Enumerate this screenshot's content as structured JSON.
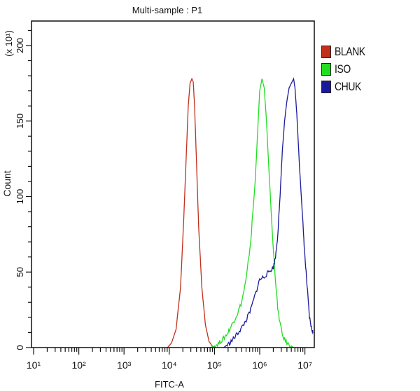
{
  "chart_data": {
    "type": "line",
    "title": "Multi-sample : P1",
    "xlabel": "FITC-A",
    "ylabel": "Count",
    "y_multiplier_label": "(x 10¹)",
    "x_scale": "log",
    "xlim_log10": [
      1,
      7.2
    ],
    "ylim": [
      0,
      215
    ],
    "x_tick_labels": [
      "10¹",
      "10²",
      "10³",
      "10⁴",
      "10⁵",
      "10⁶",
      "10⁷"
    ],
    "x_tick_exponents": [
      1,
      2,
      3,
      4,
      5,
      6,
      7
    ],
    "y_ticks": [
      0,
      50,
      100,
      150,
      200
    ],
    "grid": false,
    "legend_position": "right-outside-top",
    "series": [
      {
        "name": "BLANK",
        "color": "#c0301a",
        "log10_x": [
          3.96,
          4.05,
          4.15,
          4.25,
          4.32,
          4.38,
          4.42,
          4.46,
          4.5,
          4.53,
          4.56,
          4.6,
          4.65,
          4.72,
          4.8,
          4.88,
          4.95,
          5.0
        ],
        "y": [
          0,
          3,
          12,
          40,
          85,
          130,
          160,
          175,
          178,
          176,
          160,
          125,
          80,
          40,
          15,
          4,
          1,
          0
        ]
      },
      {
        "name": "ISO",
        "color": "#22dd22",
        "log10_x": [
          4.9,
          5.0,
          5.1,
          5.2,
          5.3,
          5.4,
          5.5,
          5.6,
          5.7,
          5.8,
          5.9,
          5.95,
          6.0,
          6.05,
          6.1,
          6.15,
          6.2,
          6.3,
          6.4,
          6.5,
          6.6,
          6.7,
          6.75
        ],
        "y": [
          0,
          1,
          3,
          6,
          10,
          16,
          22,
          30,
          45,
          70,
          110,
          140,
          170,
          178,
          172,
          150,
          120,
          65,
          25,
          8,
          3,
          1,
          0
        ],
        "noise": true
      },
      {
        "name": "CHUK",
        "color": "#1a1a9a",
        "log10_x": [
          5.2,
          5.3,
          5.4,
          5.5,
          5.6,
          5.7,
          5.8,
          5.9,
          6.0,
          6.1,
          6.2,
          6.3,
          6.35,
          6.4,
          6.45,
          6.5,
          6.55,
          6.6,
          6.65,
          6.7,
          6.75,
          6.78,
          6.82,
          6.88,
          6.95,
          7.0,
          7.05,
          7.1,
          7.15,
          7.18
        ],
        "y": [
          0,
          2,
          5,
          9,
          13,
          18,
          25,
          35,
          45,
          47,
          50,
          53,
          60,
          75,
          100,
          130,
          150,
          163,
          172,
          175,
          178,
          172,
          155,
          120,
          85,
          60,
          40,
          20,
          12,
          10
        ],
        "noise": true
      }
    ]
  },
  "legend": {
    "items": [
      {
        "label": "BLANK",
        "color": "#c0301a"
      },
      {
        "label": "ISO",
        "color": "#22dd22"
      },
      {
        "label": "CHUK",
        "color": "#1a1a9a"
      }
    ]
  }
}
